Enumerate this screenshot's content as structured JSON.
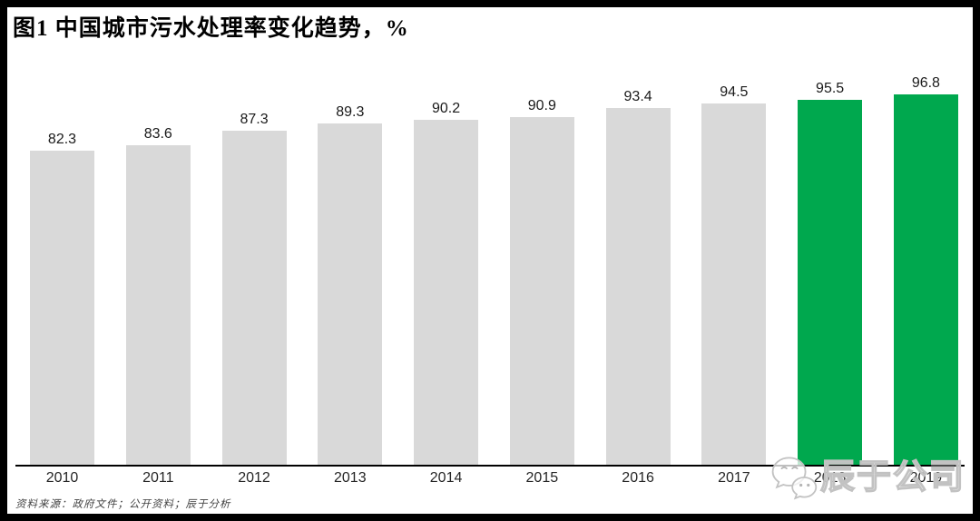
{
  "title": "图1 中国城市污水处理率变化趋势，%",
  "source_note": "资料来源：政府文件；公开资料；辰于分析",
  "watermark": {
    "text": "辰于公司",
    "icon": "wechat-icon"
  },
  "colors": {
    "bar_default": "#D9D9D9",
    "bar_highlight": "#00A84E",
    "axis": "#000000",
    "watermark_stroke": "#C2C2C2"
  },
  "chart_data": {
    "type": "bar",
    "title": "图1 中国城市污水处理率变化趋势，%",
    "categories": [
      "2010",
      "2011",
      "2012",
      "2013",
      "2014",
      "2015",
      "2016",
      "2017",
      "2018",
      "2019"
    ],
    "values": [
      82.3,
      83.6,
      87.3,
      89.3,
      90.2,
      90.9,
      93.4,
      94.5,
      95.5,
      96.8
    ],
    "value_labels": [
      "82.3",
      "83.6",
      "87.3",
      "89.3",
      "90.2",
      "90.9",
      "93.4",
      "94.5",
      "95.5",
      "96.8"
    ],
    "highlight_indices": [
      8,
      9
    ],
    "xlabel": "",
    "ylabel": "",
    "ylim": [
      0,
      100
    ],
    "grid": false,
    "legend": false,
    "data_labels_shown": true
  }
}
